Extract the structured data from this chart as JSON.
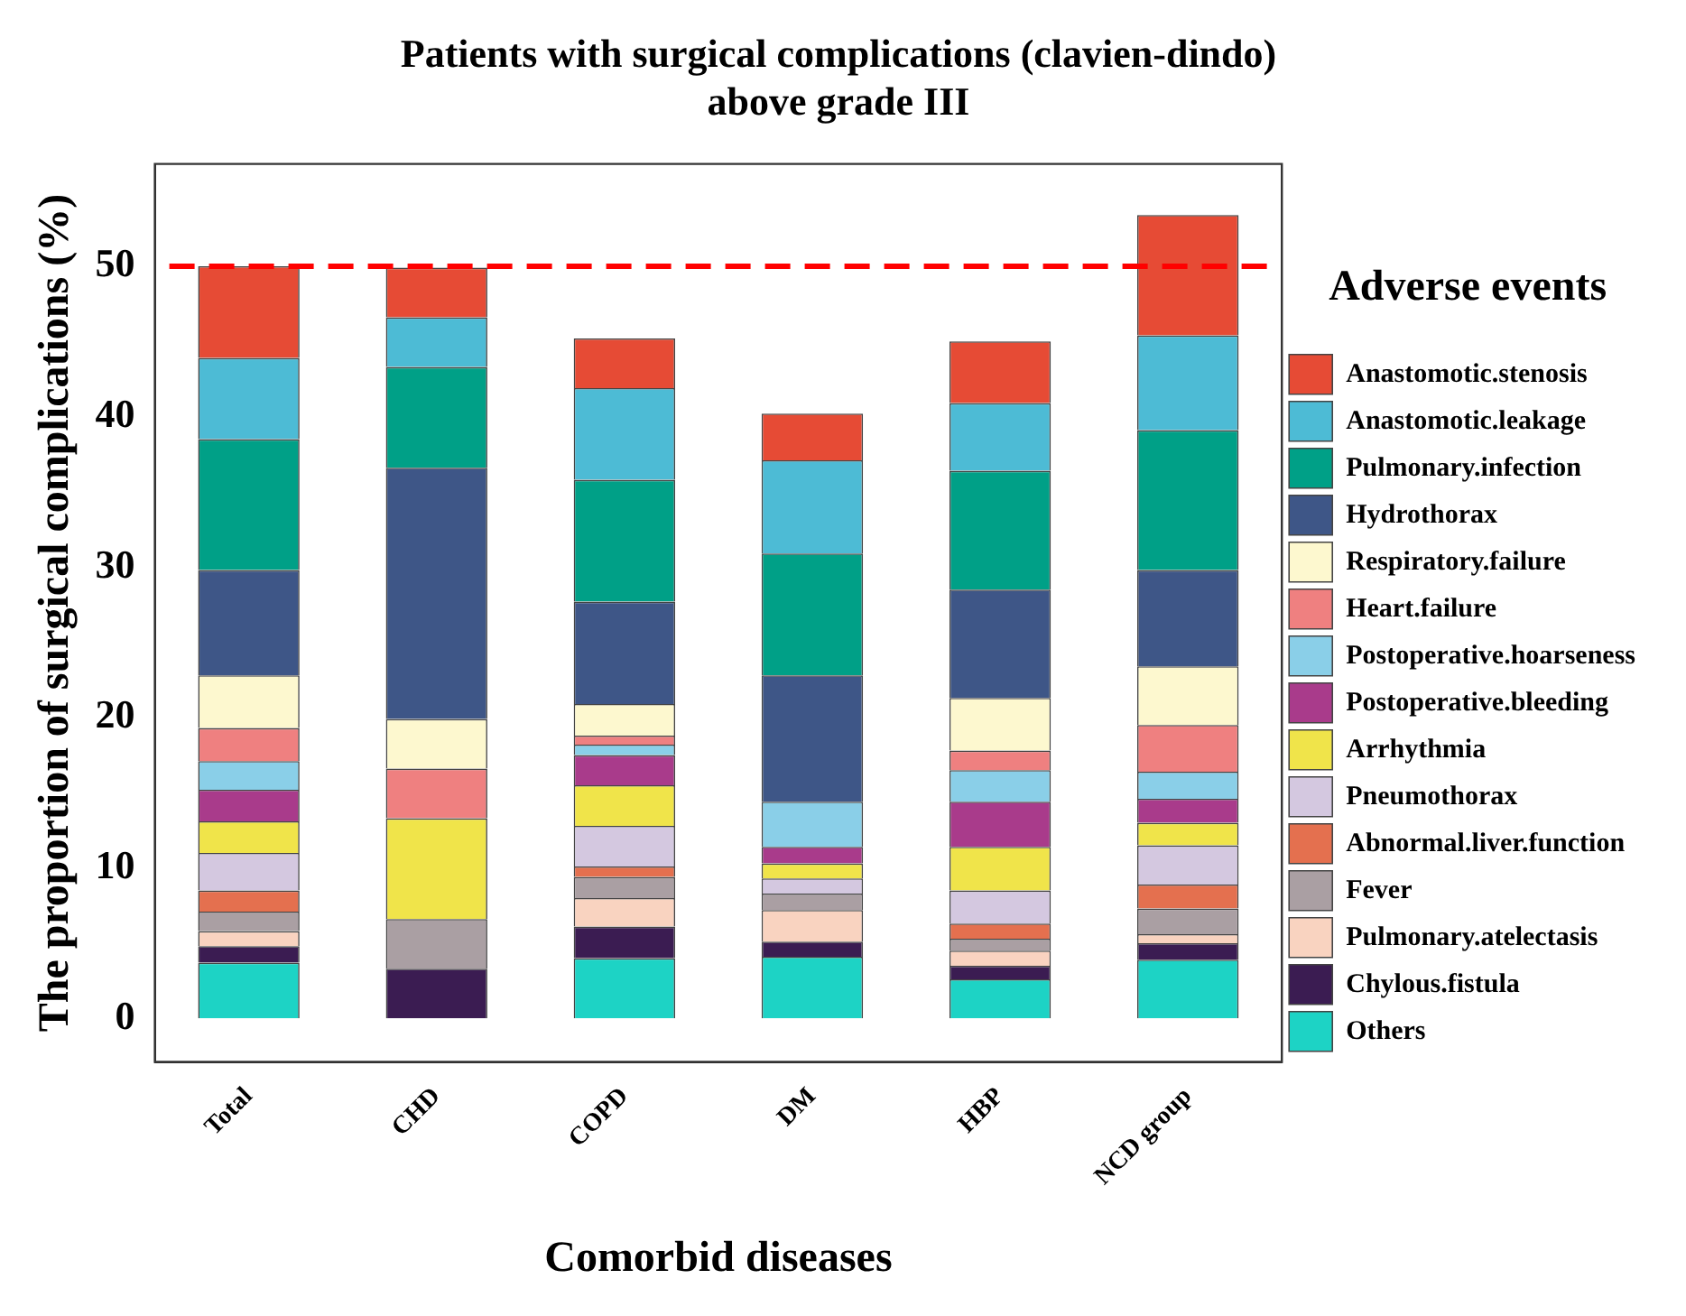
{
  "chart_data": {
    "type": "bar",
    "stacked": true,
    "title": "Patients with surgical complications (clavien-dindo) above grade III",
    "xlabel": "Comorbid diseases",
    "ylabel": "The proportion of surgical complications (%)",
    "legend_title": "Adverse events",
    "legend": "right",
    "grid": false,
    "categories": [
      "Total",
      "CHD",
      "COPD",
      "DM",
      "HBP",
      "NCD group"
    ],
    "ylim": [
      -2.9,
      56.8
    ],
    "yticks": [
      0,
      10,
      20,
      30,
      40,
      50
    ],
    "ref_lines": [
      {
        "axis": "y",
        "value": 50,
        "color": "#ff0000",
        "line_style": "dashed"
      }
    ],
    "series": [
      {
        "name": "Others",
        "color": "#1dd3c5",
        "values": [
          3.7,
          0,
          4.0,
          4.1,
          2.6,
          3.9
        ]
      },
      {
        "name": "Chylous.fistula",
        "color": "#3b1c52",
        "values": [
          1.1,
          3.3,
          2.1,
          1.0,
          0.9,
          1.1
        ]
      },
      {
        "name": "Pulmonary.atelectasis",
        "color": "#f9d3c0",
        "values": [
          1.0,
          0,
          1.9,
          2.1,
          1.0,
          0.6
        ]
      },
      {
        "name": "Fever",
        "color": "#aa9fa3",
        "values": [
          1.3,
          3.3,
          1.4,
          1.1,
          0.8,
          1.7
        ]
      },
      {
        "name": "Abnormal.liver.function",
        "color": "#e4704f",
        "values": [
          1.4,
          0,
          0.7,
          0,
          1.0,
          1.6
        ]
      },
      {
        "name": "Pneumothorax",
        "color": "#d4c8e0",
        "values": [
          2.5,
          0,
          2.7,
          1.0,
          2.2,
          2.6
        ]
      },
      {
        "name": "Arrhythmia",
        "color": "#f0e44a",
        "values": [
          2.1,
          6.7,
          2.7,
          1.0,
          2.9,
          1.5
        ]
      },
      {
        "name": "Postoperative.bleeding",
        "color": "#a93b8b",
        "values": [
          2.1,
          0,
          2.0,
          1.1,
          3.0,
          1.6
        ]
      },
      {
        "name": "Postoperative.hoarseness",
        "color": "#8acfe8",
        "values": [
          1.9,
          0,
          0.7,
          3.0,
          2.1,
          1.8
        ]
      },
      {
        "name": "Heart.failure",
        "color": "#ef8080",
        "values": [
          2.2,
          3.3,
          0.6,
          0,
          1.3,
          3.1
        ]
      },
      {
        "name": "Respiratory.failure",
        "color": "#fdf8cf",
        "values": [
          3.5,
          3.3,
          2.1,
          0,
          3.5,
          3.9
        ]
      },
      {
        "name": "Hydrothorax",
        "color": "#3e5687",
        "values": [
          7.0,
          16.7,
          6.8,
          8.4,
          7.2,
          6.4
        ]
      },
      {
        "name": "Pulmonary.infection",
        "color": "#00a087",
        "values": [
          8.7,
          6.7,
          8.1,
          8.1,
          7.9,
          9.3
        ]
      },
      {
        "name": "Anastomotic.leakage",
        "color": "#4dbbd5",
        "values": [
          5.4,
          3.3,
          6.1,
          6.2,
          4.5,
          6.3
        ]
      },
      {
        "name": "Anastomotic.stenosis",
        "color": "#e64b35",
        "values": [
          6.1,
          3.3,
          3.3,
          3.1,
          4.1,
          8.0
        ]
      }
    ]
  }
}
